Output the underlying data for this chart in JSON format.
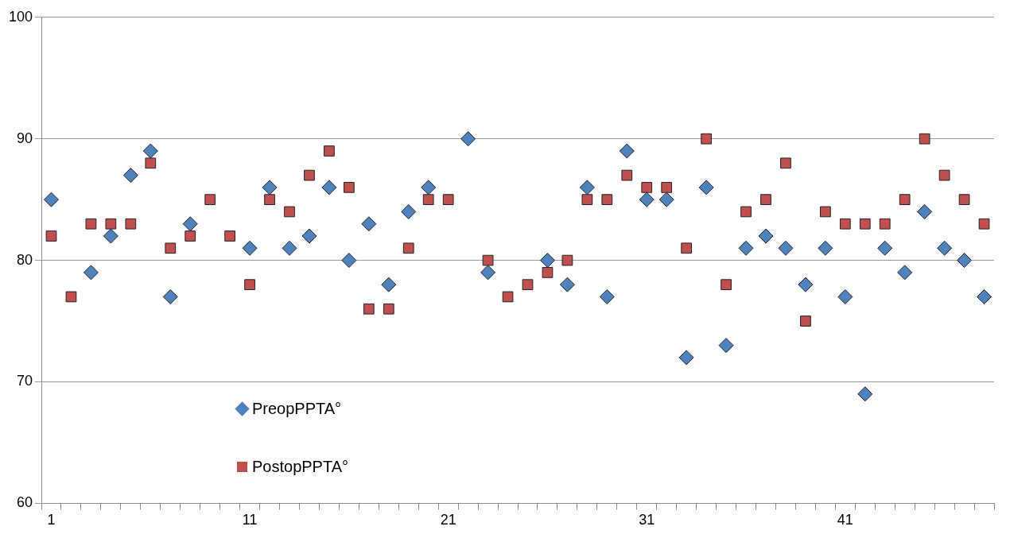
{
  "chart_data": {
    "type": "scatter",
    "categories": [
      "1",
      null,
      null,
      null,
      null,
      null,
      null,
      null,
      null,
      null,
      "11",
      null,
      null,
      null,
      null,
      null,
      null,
      null,
      null,
      null,
      "21",
      null,
      null,
      null,
      null,
      null,
      null,
      null,
      null,
      null,
      "31",
      null,
      null,
      null,
      null,
      null,
      null,
      null,
      null,
      null,
      "41",
      null,
      null,
      null,
      null,
      null,
      null,
      null
    ],
    "series": [
      {
        "name": "PreopPPTA°",
        "color": "#4f81bd",
        "marker": "diamond",
        "values": [
          85,
          null,
          79,
          82,
          87,
          89,
          77,
          83,
          null,
          null,
          81,
          86,
          81,
          82,
          86,
          80,
          83,
          78,
          84,
          86,
          null,
          90,
          79,
          null,
          null,
          80,
          78,
          86,
          77,
          89,
          85,
          85,
          72,
          86,
          73,
          81,
          82,
          81,
          78,
          81,
          77,
          69,
          81,
          79,
          84,
          81,
          80,
          77
        ]
      },
      {
        "name": "PostopPPTA°",
        "color": "#c0504d",
        "marker": "square",
        "values": [
          82,
          77,
          83,
          83,
          83,
          88,
          81,
          82,
          85,
          82,
          78,
          85,
          84,
          87,
          89,
          86,
          76,
          76,
          81,
          85,
          85,
          null,
          80,
          77,
          78,
          79,
          80,
          85,
          85,
          87,
          86,
          86,
          81,
          90,
          78,
          84,
          85,
          88,
          75,
          84,
          83,
          83,
          83,
          85,
          90,
          87,
          85,
          83
        ]
      }
    ],
    "ylim": [
      60,
      100
    ],
    "yticks": [
      60,
      70,
      80,
      90,
      100
    ],
    "grid": "y",
    "legend": "bottom left"
  }
}
